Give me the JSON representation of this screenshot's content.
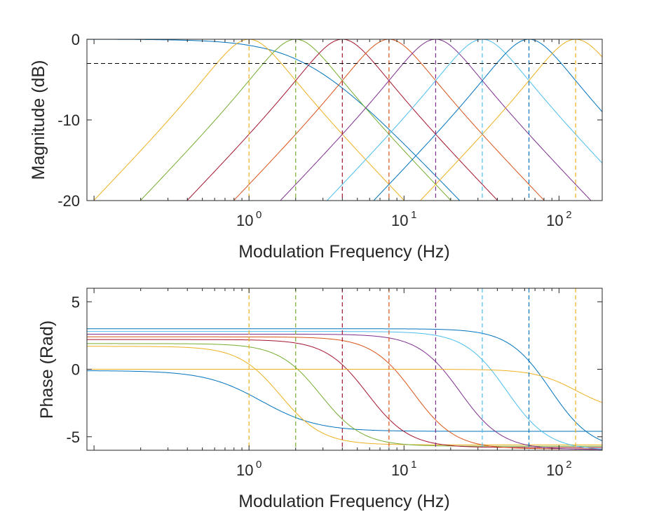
{
  "colors": {
    "axis": "#262626",
    "reference_line": "#000000",
    "series_palette": [
      "#0072BD",
      "#EDB120",
      "#77AC30",
      "#A2142F",
      "#D95319",
      "#7E2F8E",
      "#4DBEEE",
      "#0072BD",
      "#EDB120"
    ]
  },
  "chart_data": [
    {
      "type": "line",
      "panel": "magnitude",
      "xlabel": "Modulation Frequency (Hz)",
      "ylabel": "Magnitude (dB)",
      "xscale": "log",
      "xlim": [
        0.09,
        190
      ],
      "ylim": [
        -20,
        0
      ],
      "yticks": [
        0,
        -10,
        -20
      ],
      "ytick_labels": [
        "0",
        "-10",
        "-20"
      ],
      "xtick_labels": [
        {
          "base": "10",
          "exp": "0",
          "value": 1
        },
        {
          "base": "10",
          "exp": "1",
          "value": 10
        },
        {
          "base": "10",
          "exp": "2",
          "value": 100
        }
      ],
      "grid": false,
      "reference_line_y": -3,
      "series": [
        {
          "type": "lowpass",
          "cutoff": 2.3,
          "color": "#0072BD"
        },
        {
          "type": "bandpass",
          "center": 1,
          "q": 1,
          "color": "#EDB120"
        },
        {
          "type": "bandpass",
          "center": 2,
          "q": 1,
          "color": "#77AC30"
        },
        {
          "type": "bandpass",
          "center": 4,
          "q": 1,
          "color": "#A2142F"
        },
        {
          "type": "bandpass",
          "center": 8,
          "q": 1,
          "color": "#D95319"
        },
        {
          "type": "bandpass",
          "center": 16,
          "q": 1,
          "color": "#7E2F8E"
        },
        {
          "type": "bandpass",
          "center": 32,
          "q": 1,
          "color": "#4DBEEE"
        },
        {
          "type": "bandpass",
          "center": 64,
          "q": 1,
          "color": "#0072BD"
        },
        {
          "type": "bandpass",
          "center": 128,
          "q": 1,
          "color": "#EDB120"
        }
      ],
      "center_markers": [
        {
          "x": 1,
          "color": "#EDB120"
        },
        {
          "x": 2,
          "color": "#77AC30"
        },
        {
          "x": 4,
          "color": "#A2142F"
        },
        {
          "x": 8,
          "color": "#D95319"
        },
        {
          "x": 16,
          "color": "#7E2F8E"
        },
        {
          "x": 32,
          "color": "#4DBEEE"
        },
        {
          "x": 64,
          "color": "#0072BD"
        },
        {
          "x": 128,
          "color": "#EDB120"
        }
      ]
    },
    {
      "type": "line",
      "panel": "phase",
      "xlabel": "Modulation Frequency (Hz)",
      "ylabel": "Phase (Rad)",
      "xscale": "log",
      "xlim": [
        0.09,
        190
      ],
      "ylim": [
        -6,
        6
      ],
      "yticks": [
        5,
        0,
        -5
      ],
      "ytick_labels": [
        "5",
        "0",
        "-5"
      ],
      "xtick_labels": [
        {
          "base": "10",
          "exp": "0",
          "value": 1
        },
        {
          "base": "10",
          "exp": "1",
          "value": 10
        },
        {
          "base": "10",
          "exp": "2",
          "value": 100
        }
      ],
      "grid": false,
      "series": [
        {
          "color": "#0072BD",
          "start": -0.1,
          "end": -4.6,
          "mid": 1.2,
          "steep": 1.2
        },
        {
          "color": "#EDB120",
          "start": 1.7,
          "end": -5.6,
          "mid": 1.6,
          "steep": 1.6
        },
        {
          "color": "#77AC30",
          "start": 1.9,
          "end": -5.7,
          "mid": 2.9,
          "steep": 1.6
        },
        {
          "color": "#A2142F",
          "start": 2.2,
          "end": -5.8,
          "mid": 5.8,
          "steep": 1.6
        },
        {
          "color": "#D95319",
          "start": 2.4,
          "end": -5.9,
          "mid": 11.5,
          "steep": 1.6
        },
        {
          "color": "#7E2F8E",
          "start": 2.6,
          "end": -5.95,
          "mid": 23,
          "steep": 1.6
        },
        {
          "color": "#4DBEEE",
          "start": 2.8,
          "end": -6.0,
          "mid": 46,
          "steep": 1.6
        },
        {
          "color": "#0072BD",
          "start": 3.0,
          "end": -6.0,
          "mid": 88,
          "steep": 1.6
        },
        {
          "color": "#EDB120",
          "start": 0.0,
          "end": -3.2,
          "mid": 130,
          "steep": 1.6
        }
      ],
      "center_markers": [
        {
          "x": 1,
          "color": "#EDB120"
        },
        {
          "x": 2,
          "color": "#77AC30"
        },
        {
          "x": 4,
          "color": "#A2142F"
        },
        {
          "x": 8,
          "color": "#D95319"
        },
        {
          "x": 16,
          "color": "#7E2F8E"
        },
        {
          "x": 32,
          "color": "#4DBEEE"
        },
        {
          "x": 64,
          "color": "#0072BD"
        },
        {
          "x": 128,
          "color": "#EDB120"
        }
      ]
    }
  ]
}
